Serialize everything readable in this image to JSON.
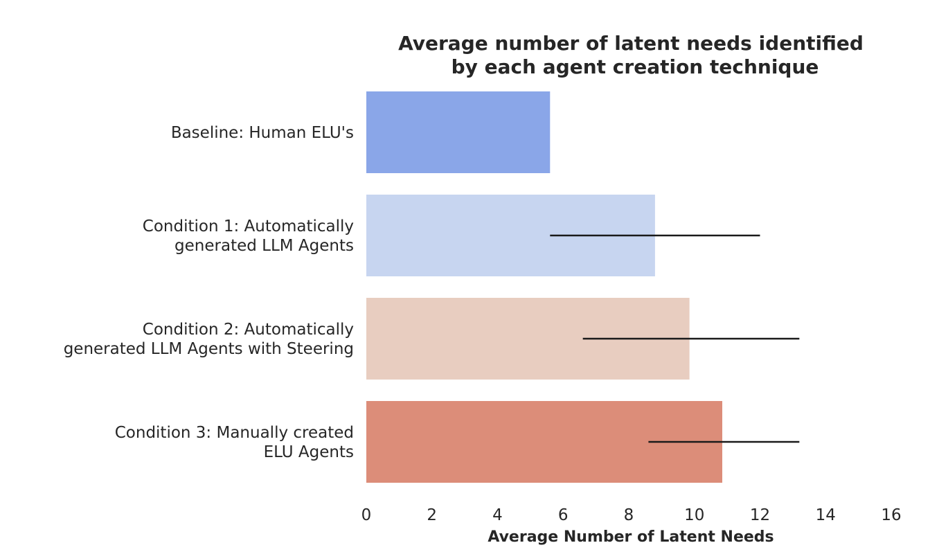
{
  "chart_data": {
    "type": "bar",
    "orientation": "horizontal",
    "title": [
      "Average number of latent needs identified",
      "by each agent creation technique"
    ],
    "xlabel": "Average Number of Latent Needs",
    "ylabel": "",
    "xlim": [
      0,
      16
    ],
    "xticks": [
      0,
      2,
      4,
      6,
      8,
      10,
      12,
      14,
      16
    ],
    "grid": false,
    "categories": [
      {
        "lines": [
          "Baseline: Human ELU's"
        ],
        "value": 5.6,
        "error": null,
        "color": "#8aa6e8"
      },
      {
        "lines": [
          "Condition 1: Automatically",
          "generated LLM Agents"
        ],
        "value": 8.8,
        "error": [
          5.6,
          12.0
        ],
        "color": "#c7d5f0"
      },
      {
        "lines": [
          "Condition 2: Automatically",
          "generated LLM Agents with Steering"
        ],
        "value": 9.85,
        "error": [
          6.6,
          13.2
        ],
        "color": "#e8cdc0"
      },
      {
        "lines": [
          "Condition 3: Manually created",
          "ELU Agents"
        ],
        "value": 10.85,
        "error": [
          8.6,
          13.2
        ],
        "color": "#dc8d79"
      }
    ]
  }
}
